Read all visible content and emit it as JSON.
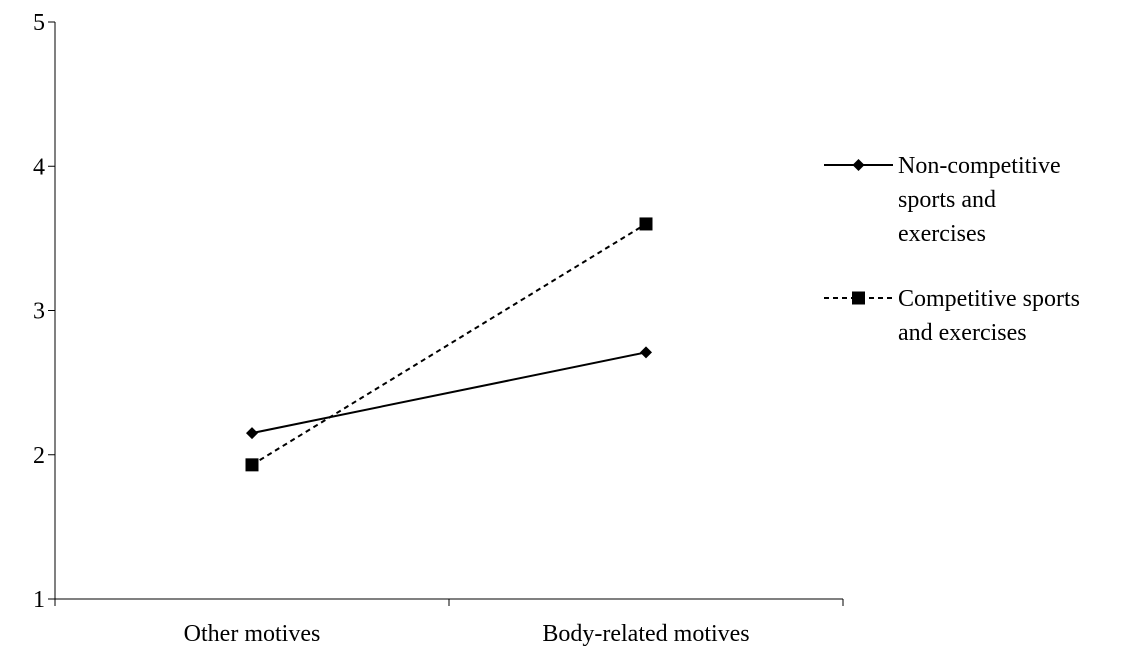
{
  "chart_data": {
    "type": "line",
    "categories": [
      "Other motives",
      "Body-related motives"
    ],
    "series": [
      {
        "name": "Non-competitive sports and exercises",
        "legend_lines": [
          "Non-competitive",
          "sports and",
          "exercises"
        ],
        "values": [
          2.15,
          2.71
        ],
        "line_style": "solid",
        "marker": "diamond",
        "color": "#000000"
      },
      {
        "name": "Competitive sports and exercises",
        "legend_lines": [
          "Competitive sports",
          "and exercises"
        ],
        "values": [
          1.93,
          3.6
        ],
        "line_style": "dashed",
        "marker": "square",
        "color": "#000000"
      }
    ],
    "ylim": [
      1,
      5
    ],
    "yticks": [
      "1",
      "2",
      "3",
      "4",
      "5"
    ],
    "title": "",
    "xlabel": "",
    "ylabel": "",
    "grid": false,
    "legend_position": "right"
  }
}
